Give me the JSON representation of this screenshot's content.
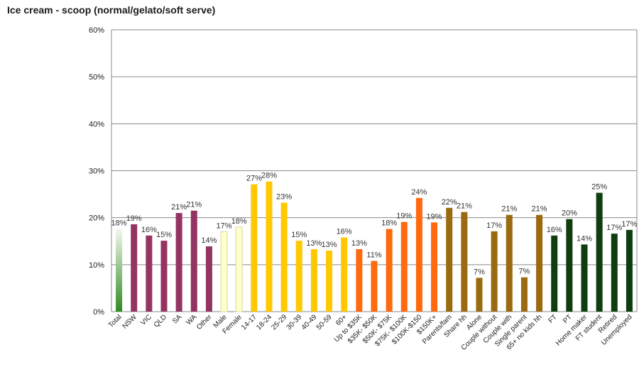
{
  "chart_data": {
    "type": "bar",
    "title": "Ice cream - scoop (normal/gelato/soft serve)",
    "xlabel": "",
    "ylabel": "",
    "ylim": [
      0,
      60
    ],
    "yticks": [
      0,
      10,
      20,
      30,
      40,
      50,
      60
    ],
    "ytick_labels": [
      "0%",
      "10%",
      "20%",
      "30%",
      "40%",
      "50%",
      "60%"
    ],
    "grid": true,
    "legend": "none",
    "categories": [
      "Total",
      "NSW",
      "VIC",
      "QLD",
      "SA",
      "WA",
      "Other",
      "Male",
      "Female",
      "14-17",
      "18-24",
      "25-29",
      "30-39",
      "40-49",
      "50-59",
      "60+",
      "Up to $35K",
      "$35K- $50K",
      "$50K- $75K",
      "$75K- $100K",
      "$100K-$150",
      "$150K+",
      "Parents/fam",
      "Share hh",
      "Alone",
      "Couple without",
      "Couple with",
      "Single parent",
      "65+ no kids hh",
      "FT",
      "PT",
      "Home maker",
      "FT student",
      "Retired",
      "Unemployed"
    ],
    "values": [
      17.6,
      18.6,
      16.2,
      15.1,
      21.0,
      21.5,
      13.9,
      17.0,
      18.0,
      27.1,
      27.7,
      23.2,
      15.1,
      13.3,
      13.0,
      15.8,
      13.3,
      10.8,
      17.6,
      19.1,
      24.2,
      19.0,
      22.1,
      21.2,
      7.2,
      17.1,
      20.6,
      7.3,
      20.6,
      16.2,
      19.7,
      14.3,
      25.3,
      16.6,
      17.4
    ],
    "data_labels": [
      "18%",
      "19%",
      "16%",
      "15%",
      "21%",
      "21%",
      "14%",
      "17%",
      "18%",
      "27%",
      "28%",
      "23%",
      "15%",
      "13%",
      "13%",
      "16%",
      "13%",
      "11%",
      "18%",
      "19%",
      "24%",
      "19%",
      "22%",
      "21%",
      "7%",
      "17%",
      "21%",
      "7%",
      "21%",
      "16%",
      "20%",
      "14%",
      "25%",
      "17%",
      "17%"
    ],
    "groups": [
      {
        "name": "total",
        "indices": [
          0
        ],
        "color": "#4a9a32",
        "gradient": true
      },
      {
        "name": "state",
        "indices": [
          1,
          2,
          3,
          4,
          5,
          6
        ],
        "color": "#943462"
      },
      {
        "name": "gender",
        "indices": [
          7,
          8
        ],
        "color": "#ffffcc"
      },
      {
        "name": "age",
        "indices": [
          9,
          10,
          11,
          12,
          13,
          14,
          15
        ],
        "color": "#ffc800"
      },
      {
        "name": "income",
        "indices": [
          16,
          17,
          18,
          19,
          20,
          21
        ],
        "color": "#ff6a0e"
      },
      {
        "name": "household",
        "indices": [
          22,
          23,
          24,
          25,
          26,
          27,
          28
        ],
        "color": "#9a6a10"
      },
      {
        "name": "work",
        "indices": [
          29,
          30,
          31,
          32,
          33,
          34
        ],
        "color": "#0e3d0e"
      }
    ]
  }
}
